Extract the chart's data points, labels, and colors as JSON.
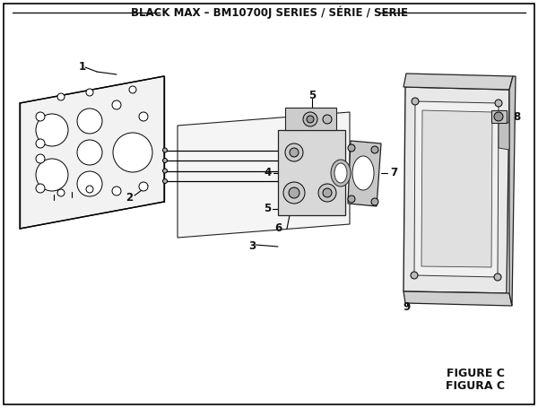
{
  "title": "BLACK MAX – BM10700J SERIES / SÉRIE / SERIE",
  "figure_label": "FIGURE C",
  "figure_label2": "FIGURA C",
  "bg_color": "#ffffff",
  "border_color": "#000000",
  "line_color": "#000000",
  "title_fontsize": 8.5,
  "label_fontsize": 8.5
}
